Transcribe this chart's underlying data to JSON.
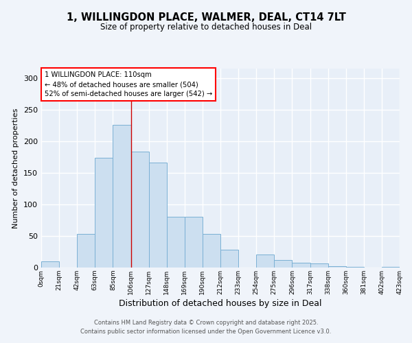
{
  "title_line1": "1, WILLINGDON PLACE, WALMER, DEAL, CT14 7LT",
  "title_line2": "Size of property relative to detached houses in Deal",
  "xlabel": "Distribution of detached houses by size in Deal",
  "ylabel": "Number of detached properties",
  "bar_color": "#ccdff0",
  "bar_edgecolor": "#7ab0d4",
  "background_color": "#e8eff8",
  "grid_color": "#ffffff",
  "fig_background": "#f0f4fa",
  "bin_labels": [
    "0sqm",
    "21sqm",
    "42sqm",
    "63sqm",
    "85sqm",
    "106sqm",
    "127sqm",
    "148sqm",
    "169sqm",
    "190sqm",
    "212sqm",
    "233sqm",
    "254sqm",
    "275sqm",
    "296sqm",
    "317sqm",
    "338sqm",
    "360sqm",
    "381sqm",
    "402sqm",
    "423sqm"
  ],
  "counts": [
    10,
    0,
    53,
    174,
    226,
    184,
    166,
    80,
    80,
    53,
    28,
    0,
    21,
    12,
    8,
    7,
    2,
    1,
    0,
    1
  ],
  "vline_x": 5,
  "annotation_title": "1 WILLINGDON PLACE: 110sqm",
  "annotation_line1": "← 48% of detached houses are smaller (504)",
  "annotation_line2": "52% of semi-detached houses are larger (542) →",
  "ylim": [
    0,
    315
  ],
  "yticks": [
    0,
    50,
    100,
    150,
    200,
    250,
    300
  ],
  "footer_line1": "Contains HM Land Registry data © Crown copyright and database right 2025.",
  "footer_line2": "Contains public sector information licensed under the Open Government Licence v3.0."
}
